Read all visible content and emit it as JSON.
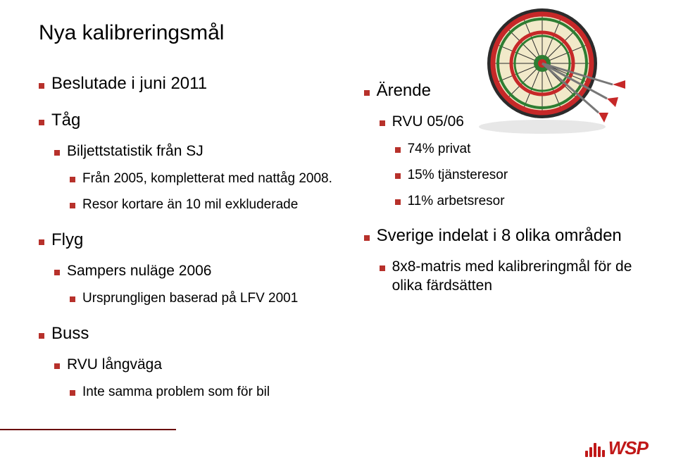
{
  "title": "Nya kalibreringsmål",
  "bullet_color": "#b7312b",
  "left": {
    "items": [
      {
        "label": "Beslutade i juni 2011"
      },
      {
        "label": "Tåg",
        "children": [
          {
            "label": "Biljettstatistik från SJ",
            "children": [
              {
                "label": "Från 2005, kompletterat med nattåg 2008."
              },
              {
                "label": "Resor kortare än 10 mil exkluderade"
              }
            ]
          }
        ]
      },
      {
        "label": "Flyg",
        "children": [
          {
            "label": "Sampers nuläge 2006",
            "children": [
              {
                "label": "Ursprungligen baserad på LFV 2001"
              }
            ]
          }
        ]
      },
      {
        "label": "Buss",
        "children": [
          {
            "label": "RVU långväga",
            "children": [
              {
                "label": "Inte samma problem som för bil"
              }
            ]
          }
        ]
      }
    ]
  },
  "right": {
    "items": [
      {
        "label": "Ärende",
        "children": [
          {
            "label": "RVU 05/06",
            "children": [
              {
                "label": "74% privat"
              },
              {
                "label": "15% tjänsteresor"
              },
              {
                "label": "11% arbetsresor"
              }
            ]
          }
        ]
      },
      {
        "label": "Sverige indelat i 8 olika områden",
        "children": [
          {
            "label": "8x8-matris med kalibreringmål för de olika färdsätten"
          }
        ]
      }
    ]
  },
  "darts": {
    "board_colors": {
      "outer": "#2b2b2b",
      "ring1": "#c62828",
      "ring2": "#2e7d32",
      "face": "#f1e9c9",
      "bull_outer": "#2e7d32",
      "bull": "#c62828"
    },
    "flight_color": "#c62828"
  },
  "footer_line_color": "#690404",
  "logo": {
    "text": "WSP",
    "color": "#c01818",
    "bars": [
      9,
      14,
      20,
      15,
      10
    ]
  }
}
